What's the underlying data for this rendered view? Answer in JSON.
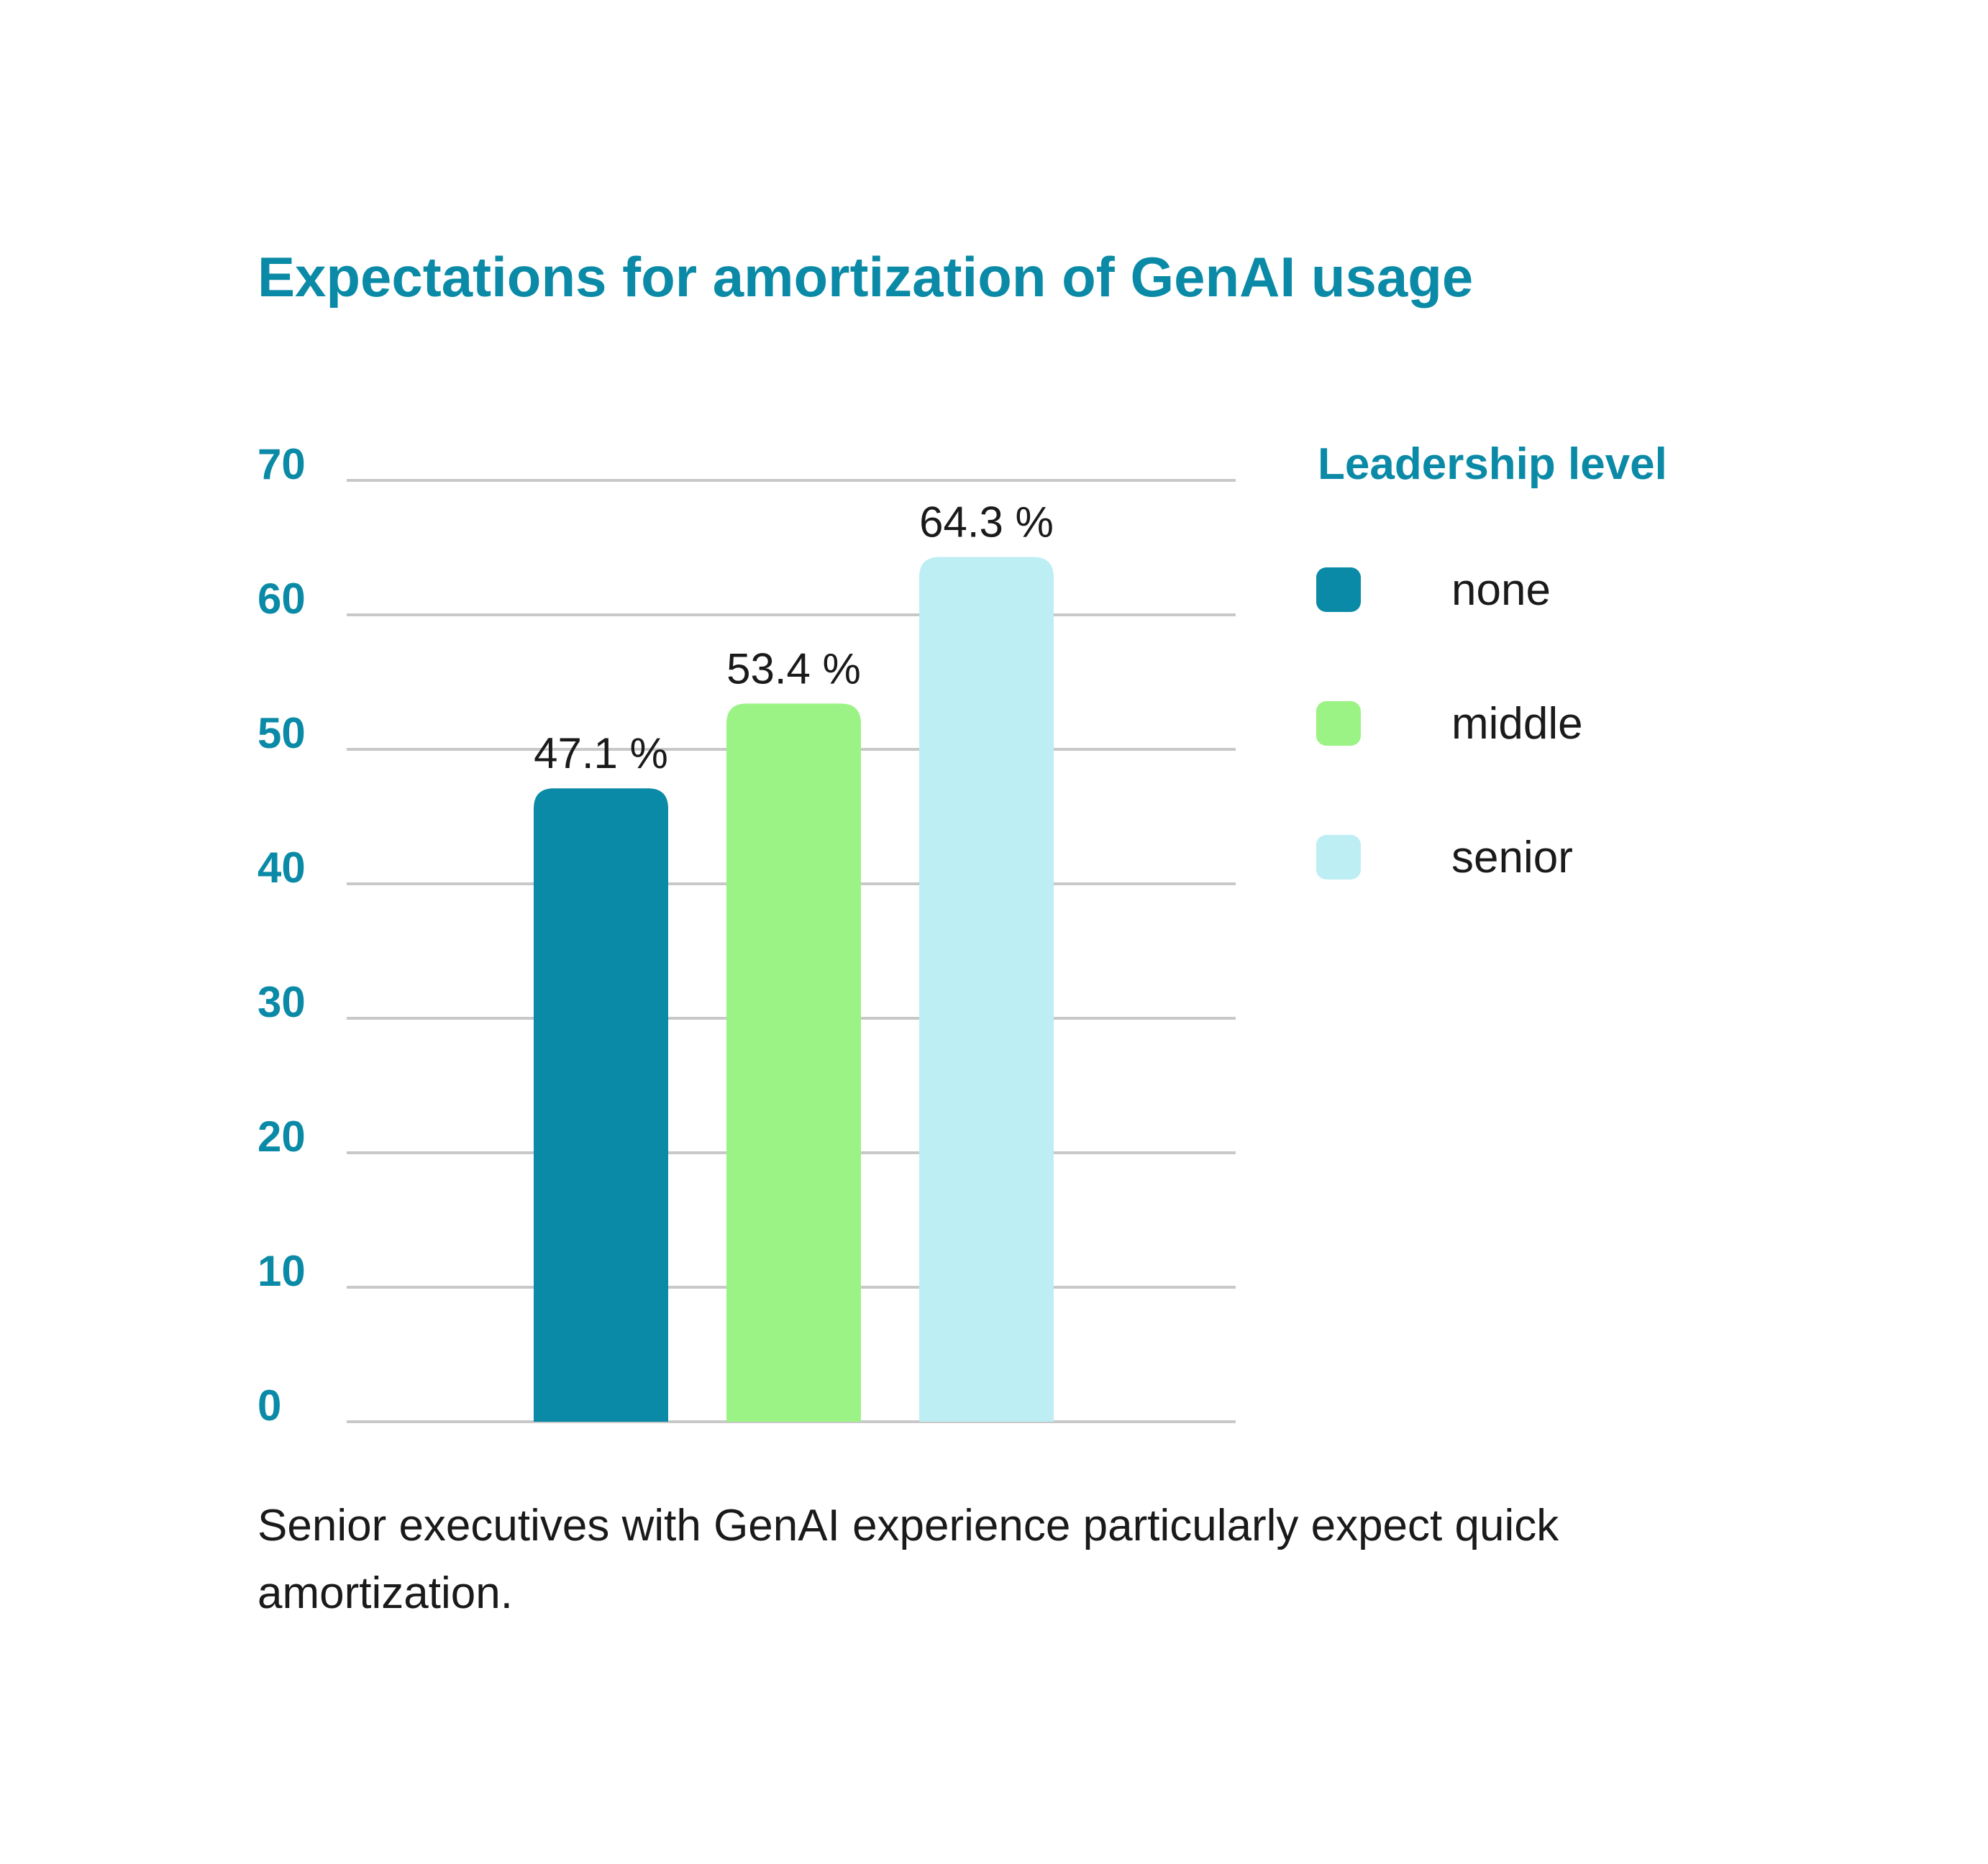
{
  "chart_data": {
    "type": "bar",
    "title": "Expectations for amortization of GenAI usage",
    "categories": [
      "none",
      "middle",
      "senior"
    ],
    "values": [
      47.1,
      53.4,
      64.3
    ],
    "value_labels": [
      "47.1 %",
      "53.4 %",
      "64.3 %"
    ],
    "colors": [
      "#0a8aa6",
      "#9af384",
      "#bdeef4"
    ],
    "ylim": [
      0,
      70
    ],
    "yticks": [
      "0",
      "10",
      "20",
      "30",
      "40",
      "50",
      "60",
      "70"
    ],
    "grid": true,
    "xlabel": "",
    "ylabel": "",
    "legend": {
      "title": "Leadership level",
      "position": "right",
      "entries": [
        "none",
        "middle",
        "senior"
      ]
    }
  },
  "caption": "Senior executives with GenAI experience particularly expect quick amortization.",
  "colors": {
    "accent": "#0a8aa6",
    "gridline": "#c8c8c8",
    "text": "#1a1a1a"
  }
}
